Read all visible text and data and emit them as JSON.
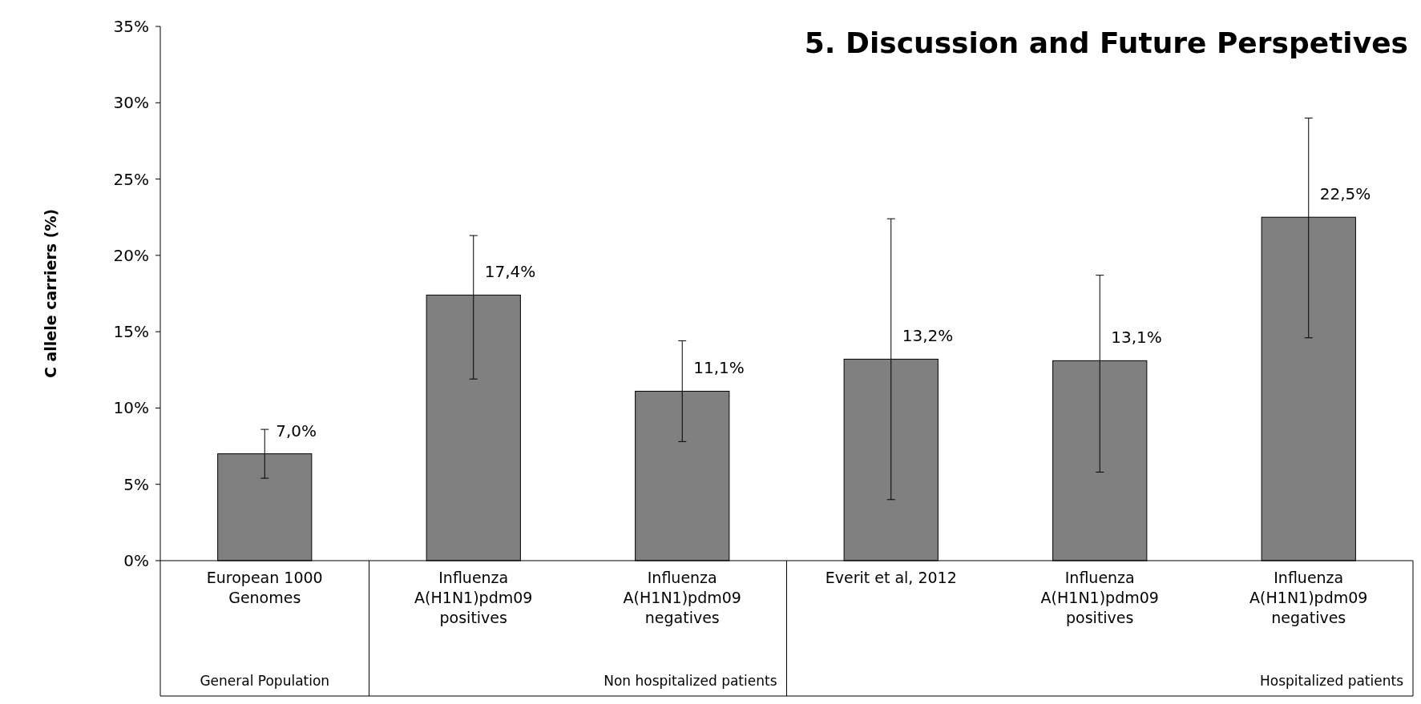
{
  "chart_data": {
    "type": "bar",
    "title": "5. Discussion and Future Perspetives",
    "ylabel": "C allele carriers (%)",
    "categories": [
      "European 1000 Genomes",
      "Influenza A(H1N1)pdm09 positives",
      "Influenza A(H1N1)pdm09 negatives",
      "Everit et al, 2012",
      "Influenza A(H1N1)pdm09 positives",
      "Influenza A(H1N1)pdm09 negatives"
    ],
    "values": [
      7.0,
      17.4,
      11.1,
      13.2,
      13.1,
      22.5
    ],
    "value_labels": [
      "7,0%",
      "17,4%",
      "11,1%",
      "13,2%",
      "13,1%",
      "22,5%"
    ],
    "errors": [
      [
        5.4,
        8.6
      ],
      [
        11.9,
        21.3
      ],
      [
        7.8,
        14.4
      ],
      [
        4.0,
        22.4
      ],
      [
        5.8,
        18.7
      ],
      [
        14.6,
        29.0
      ]
    ],
    "color": "#808080",
    "ylim": [
      0,
      35
    ],
    "yticks": [
      {
        "value": 0,
        "label": "0%"
      },
      {
        "value": 5,
        "label": "5%"
      },
      {
        "value": 10,
        "label": "10%"
      },
      {
        "value": 15,
        "label": "15%"
      },
      {
        "value": 20,
        "label": "20%"
      },
      {
        "value": 25,
        "label": "25%"
      },
      {
        "value": 30,
        "label": "30%"
      },
      {
        "value": 35,
        "label": "35%"
      }
    ],
    "annotations": [
      "General Population",
      "Non hospitalized patients",
      "Hospitalized patients"
    ],
    "grid": false
  }
}
